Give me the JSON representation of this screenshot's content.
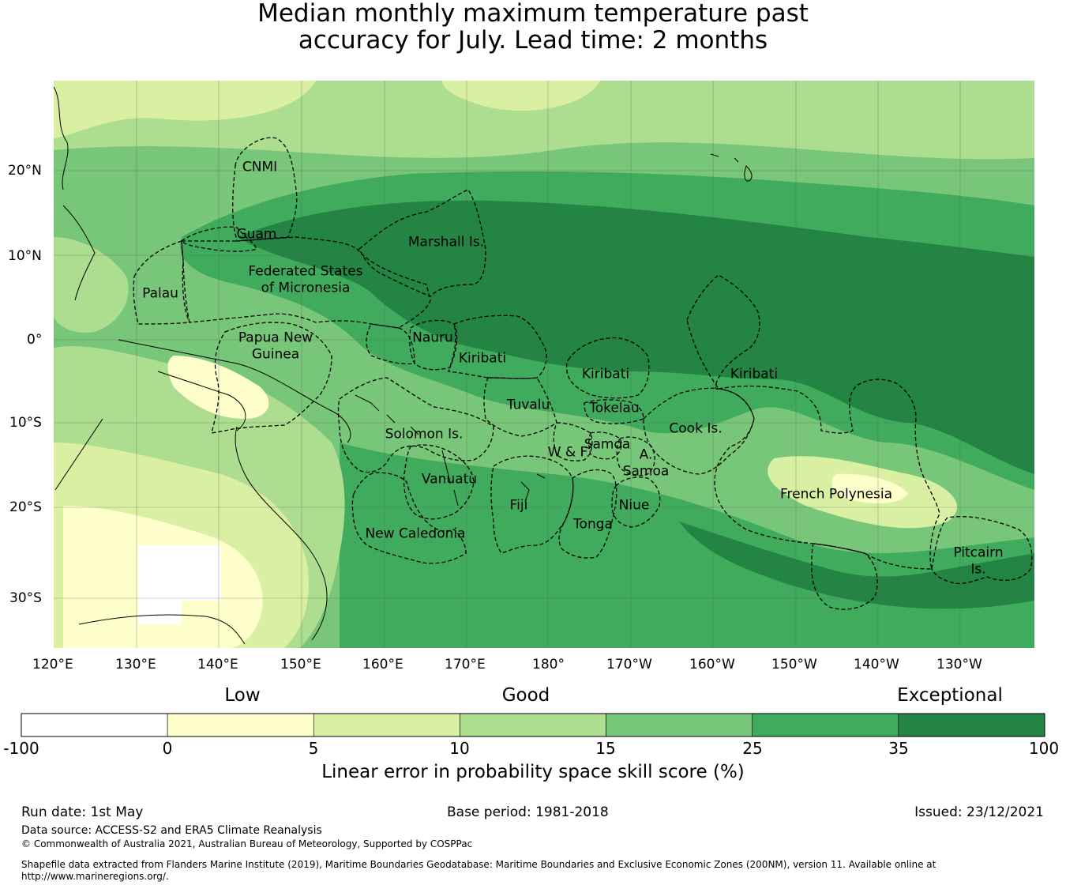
{
  "title": {
    "line1": "Median monthly maximum temperature past",
    "line2": "accuracy for July. Lead time: 2 months"
  },
  "map": {
    "lat_labels": [
      "20°N",
      "10°N",
      "0°",
      "10°S",
      "20°S",
      "30°S"
    ],
    "lon_labels": [
      "120°E",
      "130°E",
      "140°E",
      "150°E",
      "160°E",
      "170°E",
      "180°",
      "170°W",
      "160°W",
      "150°W",
      "140°W",
      "130°W"
    ],
    "regions": [
      {
        "id": "cnmi",
        "text": "CNMI"
      },
      {
        "id": "guam",
        "text": "Guam"
      },
      {
        "id": "marshall",
        "text": "Marshall Is."
      },
      {
        "id": "palau",
        "text": "Palau"
      },
      {
        "id": "fsm1",
        "text": "Federated States"
      },
      {
        "id": "fsm2",
        "text": "of Micronesia"
      },
      {
        "id": "png1",
        "text": "Papua New"
      },
      {
        "id": "png2",
        "text": "Guinea"
      },
      {
        "id": "nauru",
        "text": "Nauru"
      },
      {
        "id": "kiribati_w",
        "text": "Kiribati"
      },
      {
        "id": "kiribati_c",
        "text": "Kiribati"
      },
      {
        "id": "kiribati_e",
        "text": "Kiribati"
      },
      {
        "id": "tuvalu",
        "text": "Tuvalu"
      },
      {
        "id": "tokelau",
        "text": "Tokelau"
      },
      {
        "id": "solomon",
        "text": "Solomon Is."
      },
      {
        "id": "cook",
        "text": "Cook Is."
      },
      {
        "id": "samoa",
        "text": "Samoa"
      },
      {
        "id": "wf",
        "text": "W & F"
      },
      {
        "id": "asamoa1",
        "text": "A."
      },
      {
        "id": "asamoa2",
        "text": "Samoa"
      },
      {
        "id": "vanuatu",
        "text": "Vanuatu"
      },
      {
        "id": "fiji",
        "text": "Fiji"
      },
      {
        "id": "niue",
        "text": "Niue"
      },
      {
        "id": "frpoly",
        "text": "French Polynesia"
      },
      {
        "id": "tonga",
        "text": "Tonga"
      },
      {
        "id": "newcal",
        "text": "New Caledonia"
      },
      {
        "id": "pitcairn1",
        "text": "Pitcairn"
      },
      {
        "id": "pitcairn2",
        "text": "Is."
      }
    ]
  },
  "colorbar": {
    "categories": [
      "Low",
      "Good",
      "Exceptional"
    ],
    "ticks": [
      "-100",
      "0",
      "5",
      "10",
      "15",
      "25",
      "35",
      "100"
    ],
    "colors": [
      "#ffffff",
      "#ffffcc",
      "#d9f0a3",
      "#addd8e",
      "#78c679",
      "#41ab5d",
      "#238443"
    ],
    "label": "Linear error in probability space skill score (%)"
  },
  "footer": {
    "run_date": "Run date: 1st May",
    "base_period": "Base period: 1981-2018",
    "issued": "Issued: 23/12/2021",
    "data_source": "Data source: ACCESS-S2 and ERA5 Climate Reanalysis",
    "copyright": "© Commonwealth of Australia 2021, Australian Bureau of Meteorology, Supported by COSPPac",
    "shapefile_line1": "Shapefile data extracted from Flanders Marine Institute (2019), Maritime Boundaries Geodatabase: Maritime Boundaries and Exclusive Economic Zones (200NM), version 11. Available online at",
    "shapefile_line2": "http://www.marineregions.org/."
  }
}
